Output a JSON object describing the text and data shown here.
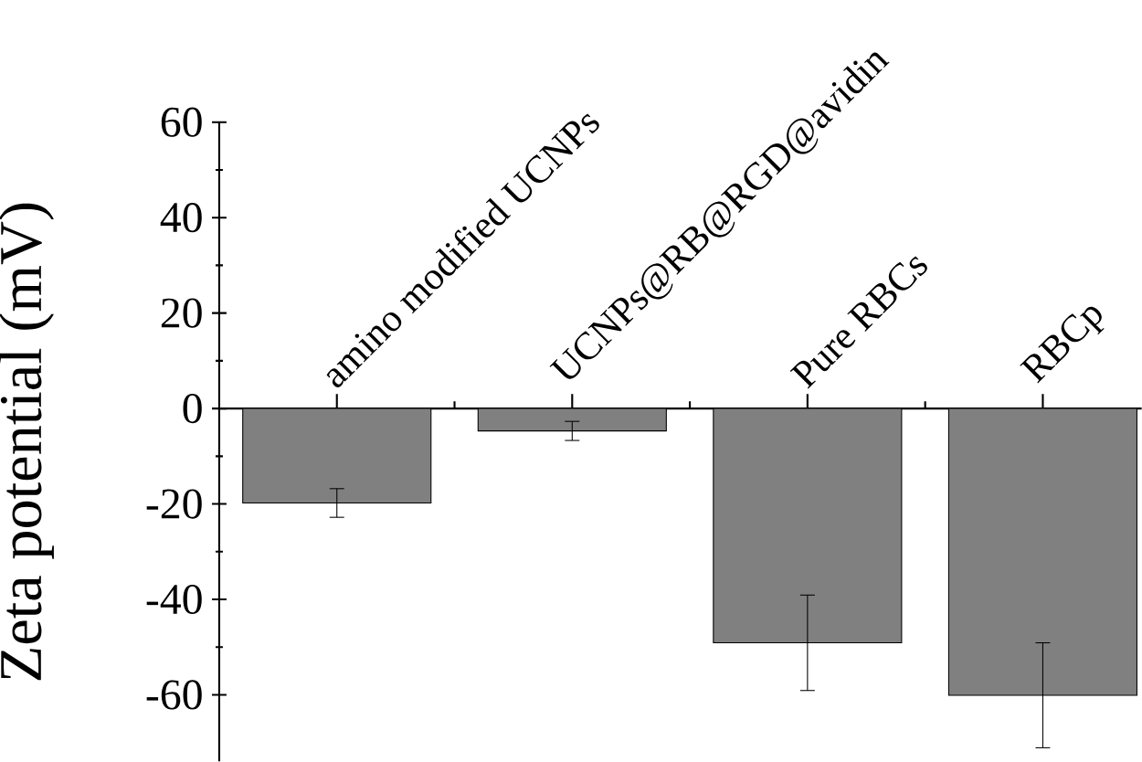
{
  "chart_data": {
    "type": "bar",
    "ylabel": "Zeta potential (mV)",
    "categories": [
      "amino modified UCNPs",
      "UCNPs@RB@RGD@avidin",
      "Pure RBCs",
      "RBCp"
    ],
    "values": [
      -19.8,
      -4.7,
      -49.1,
      -60.1
    ],
    "errors": [
      3,
      2,
      10,
      11
    ],
    "color": "#808080",
    "ylim": [
      -74,
      60
    ],
    "yticks": [
      -60,
      -40,
      -20,
      0,
      20,
      40,
      60
    ]
  }
}
